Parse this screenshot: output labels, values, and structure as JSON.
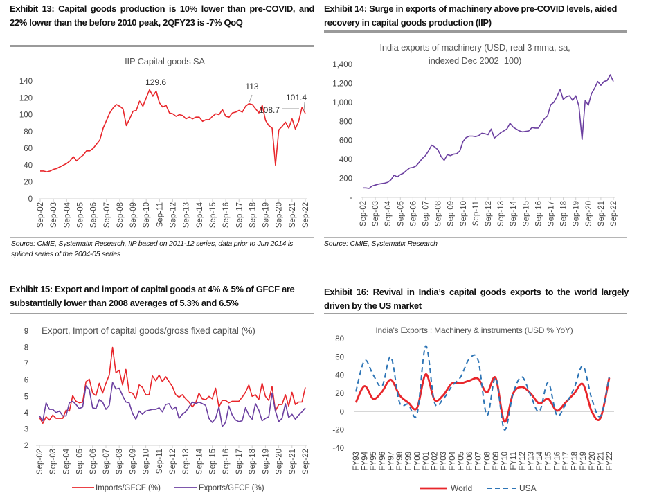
{
  "headings": {
    "ex13": "Exhibit 13: Capital goods production is 10% lower than pre-COVID, and 22% lower than the before 2010 peak, 2QFY23 is -7% QoQ",
    "ex14": "Exhibit 14: Surge in exports of machinery above pre-COVID levels, aided recovery in capital goods production (IIP)",
    "ex15": "Exhibit 15: Export and import of capital goods at 4% & 5% of GFCF are substantially lower than 2008 averages of 5.3% and 6.5%",
    "ex16": "Exhibit 16: Revival in India’s capital goods exports to the world largely driven by the US market"
  },
  "sources": {
    "ex13": "Source: CMIE, Systematix Research, IIP based on 2011-12 series, data prior to Jun 2014 is spliced series of the 2004-05 series",
    "ex14": "Source:  CMIE, Systematix Research"
  },
  "colors": {
    "red": "#e8262b",
    "purple": "#6b3fa0",
    "blue": "#2e75b6",
    "axis": "#d0d0d0"
  },
  "chart_data": [
    {
      "type": "line",
      "title": "IIP Capital goods SA",
      "start": "Sep-02",
      "end": "Sep-22",
      "frequency": "quarterly",
      "ylim": [
        0,
        140
      ],
      "y_ticks": [
        "0",
        "20",
        "40",
        "60",
        "80",
        "100",
        "120",
        "140"
      ],
      "x_ticks": [
        "Sep-02",
        "Sep-03",
        "Sep-04",
        "Sep-05",
        "Sep-06",
        "Sep-07",
        "Sep-08",
        "Sep-09",
        "Sep-10",
        "Sep-11",
        "Sep-12",
        "Sep-13",
        "Sep-14",
        "Sep-15",
        "Sep-16",
        "Sep-17",
        "Sep-18",
        "Sep-19",
        "Sep-20",
        "Sep-21",
        "Sep-22"
      ],
      "series": [
        {
          "color": "#e8262b",
          "values": [
            33,
            33,
            32,
            33,
            35,
            36,
            38,
            40,
            42,
            45,
            50,
            45,
            49,
            52,
            57,
            57,
            60,
            65,
            70,
            84,
            93,
            102,
            108,
            112,
            110,
            107,
            87,
            95,
            104,
            105,
            116,
            110,
            120,
            129.6,
            122,
            128,
            114,
            109,
            111,
            102,
            101,
            98,
            100,
            99,
            95,
            97,
            95,
            97,
            97,
            92,
            94,
            94,
            98,
            101,
            100,
            106,
            98,
            97,
            102,
            103,
            105,
            103,
            110,
            113,
            112,
            107,
            102,
            111,
            93,
            87,
            84,
            40,
            82,
            86,
            91,
            84,
            95,
            83,
            92,
            108.7,
            101.4
          ]
        }
      ],
      "annotations": [
        {
          "label": "129.6",
          "at": "Dec-10"
        },
        {
          "label": "113",
          "at": "Jun-18"
        },
        {
          "label": "108.7",
          "at": "Jun-22"
        },
        {
          "label": "101.4",
          "at": "Sep-22"
        }
      ],
      "grid": false
    },
    {
      "type": "line",
      "title": "India exports of machinery (USD, real 3 mma, sa, indexed Dec 2002=100)",
      "title_line1": "India exports of machinery (USD, real 3 mma, sa,",
      "title_line2": "indexed Dec 2002=100)",
      "start": "Sep-02",
      "end": "Sep-22",
      "frequency": "quarterly",
      "ylim": [
        0,
        1400
      ],
      "y_ticks": [
        "-",
        "200",
        "400",
        "600",
        "800",
        "1,000",
        "1,200",
        "1,400"
      ],
      "x_ticks": [
        "Sep-02",
        "Sep-03",
        "Sep-04",
        "Sep-05",
        "Sep-06",
        "Sep-07",
        "Sep-08",
        "Sep-09",
        "Sep-10",
        "Sep-11",
        "Sep-12",
        "Sep-13",
        "Sep-14",
        "Sep-15",
        "Sep-16",
        "Sep-17",
        "Sep-18",
        "Sep-19",
        "Sep-20",
        "Sep-21",
        "Sep-22"
      ],
      "series": [
        {
          "color": "#6b3fa0",
          "values": [
            100,
            100,
            95,
            120,
            130,
            140,
            145,
            150,
            160,
            185,
            235,
            215,
            240,
            255,
            285,
            310,
            315,
            330,
            370,
            410,
            440,
            490,
            550,
            530,
            500,
            430,
            390,
            450,
            440,
            455,
            460,
            490,
            590,
            630,
            645,
            645,
            640,
            650,
            675,
            670,
            660,
            720,
            625,
            650,
            680,
            700,
            720,
            780,
            740,
            720,
            700,
            690,
            695,
            700,
            735,
            730,
            730,
            780,
            830,
            860,
            975,
            1000,
            1060,
            1135,
            1030,
            1060,
            1070,
            1020,
            1070,
            960,
            610,
            1020,
            970,
            1090,
            1150,
            1220,
            1180,
            1220,
            1230,
            1290,
            1220
          ]
        }
      ],
      "grid": false
    },
    {
      "type": "line",
      "title": "Export, Import of capital goods/gross fixed capital (%)",
      "start": "Sep-02",
      "end": "Sep-22",
      "frequency": "quarterly",
      "ylim": [
        2,
        9
      ],
      "y_ticks": [
        "2",
        "3",
        "4",
        "5",
        "6",
        "7",
        "8",
        "9"
      ],
      "x_ticks": [
        "Sep-02",
        "Sep-03",
        "Sep-04",
        "Sep-05",
        "Sep-06",
        "Sep-07",
        "Sep-08",
        "Sep-09",
        "Sep-10",
        "Sep-11",
        "Sep-12",
        "Sep-13",
        "Sep-14",
        "Sep-15",
        "Sep-16",
        "Sep-17",
        "Sep-18",
        "Sep-19",
        "Sep-20",
        "Sep-21",
        "Sep-22"
      ],
      "series": [
        {
          "name": "Imports/GFCF (%)",
          "color": "#e8262b",
          "values": [
            3.7,
            3.35,
            3.75,
            3.55,
            3.85,
            3.65,
            3.65,
            3.65,
            4.15,
            4.1,
            5.05,
            4.7,
            4.6,
            4.65,
            5.9,
            6.05,
            5.2,
            5.05,
            5.8,
            5.2,
            5.8,
            6.3,
            8.0,
            6.45,
            6.6,
            5.7,
            6.65,
            5.25,
            5.2,
            4.85,
            5.7,
            5.55,
            5.1,
            5.1,
            6.25,
            5.95,
            6.3,
            5.9,
            6.2,
            5.9,
            5.6,
            5.1,
            4.95,
            5.1,
            4.85,
            4.65,
            4.35,
            4.6,
            5.2,
            4.85,
            4.8,
            5.0,
            4.85,
            5.5,
            4.35,
            4.75,
            4.75,
            4.6,
            4.7,
            4.7,
            4.7,
            4.95,
            5.25,
            5.7,
            5.0,
            5.1,
            4.8,
            5.8,
            5.0,
            4.75,
            5.6,
            4.1,
            4.5,
            4.5,
            5.1,
            4.4,
            5.25,
            4.5,
            4.65,
            4.65,
            5.55
          ]
        },
        {
          "name": "Exports/GFCF (%)",
          "color": "#6b3fa0",
          "values": [
            3.8,
            3.5,
            4.6,
            4.2,
            4.2,
            4.0,
            4.1,
            3.8,
            3.8,
            4.6,
            4.7,
            4.5,
            4.25,
            4.35,
            5.65,
            5.4,
            4.3,
            4.25,
            4.8,
            4.65,
            4.2,
            4.45,
            5.85,
            5.45,
            5.5,
            5.05,
            4.65,
            4.6,
            3.95,
            3.6,
            4.1,
            3.9,
            4.1,
            4.15,
            4.2,
            4.2,
            4.3,
            4.05,
            4.5,
            4.55,
            4.2,
            4.35,
            3.65,
            3.9,
            4.05,
            4.35,
            4.65,
            4.55,
            4.65,
            4.55,
            4.45,
            3.65,
            3.4,
            3.65,
            4.35,
            3.15,
            3.4,
            4.4,
            3.85,
            3.55,
            3.45,
            3.5,
            4.3,
            3.85,
            3.6,
            4.55,
            4.15,
            3.5,
            3.65,
            3.75,
            5.2,
            4.1,
            3.45,
            3.65,
            4.55,
            3.7,
            3.9,
            3.6,
            3.85,
            4.05,
            4.3
          ]
        }
      ],
      "legend": "bottom",
      "grid": false
    },
    {
      "type": "line",
      "title": "India's Exports : Machinery & instruments (USD % YoY)",
      "categories": [
        "FY93",
        "FY94",
        "FY95",
        "FY96",
        "FY97",
        "FY98",
        "FY99",
        "FY00",
        "FY01",
        "FY02",
        "FY03",
        "FY04",
        "FY05",
        "FY06",
        "FY07",
        "FY08",
        "FY09",
        "FY10",
        "FY11",
        "FY12",
        "FY13",
        "FY14",
        "FY15",
        "FY16",
        "FY17",
        "FY18",
        "FY19",
        "FY20",
        "FY21",
        "FY22"
      ],
      "ylim": [
        -40,
        80
      ],
      "y_ticks": [
        "-40",
        "-20",
        "0",
        "20",
        "40",
        "60",
        "80"
      ],
      "series": [
        {
          "name": "World",
          "color": "#e8262b",
          "style": "solid",
          "values": [
            10,
            28,
            14,
            22,
            35,
            18,
            10,
            4,
            41,
            13,
            18,
            31,
            31,
            34,
            36,
            21,
            37,
            -11,
            20,
            27,
            20,
            9,
            14,
            1,
            10,
            20,
            30,
            0,
            -7,
            37
          ]
        },
        {
          "name": "USA",
          "color": "#2e75b6",
          "style": "dashed",
          "values": [
            22,
            56,
            40,
            28,
            60,
            10,
            8,
            -3,
            72,
            10,
            14,
            28,
            38,
            58,
            56,
            -4,
            37,
            -20,
            20,
            38,
            18,
            0,
            32,
            -4,
            8,
            26,
            50,
            14,
            -5,
            38
          ]
        }
      ],
      "legend": "bottom",
      "smooth": true,
      "grid": false
    }
  ]
}
